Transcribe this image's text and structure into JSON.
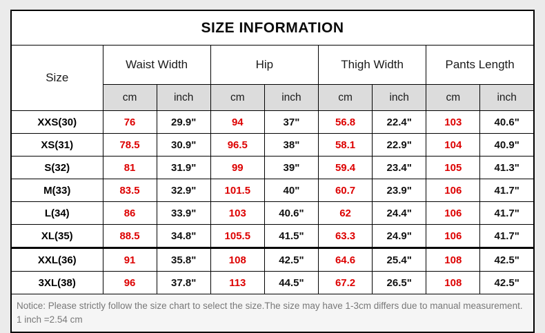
{
  "table": {
    "title": "SIZE INFORMATION",
    "size_column_header": "Size",
    "groups": [
      {
        "label": "Waist Width"
      },
      {
        "label": "Hip"
      },
      {
        "label": "Thigh Width"
      },
      {
        "label": "Pants Length"
      }
    ],
    "unit_headers": [
      "cm",
      "inch"
    ],
    "rows": [
      {
        "size": "XXS(30)",
        "values": [
          "76",
          "29.9\"",
          "94",
          "37\"",
          "56.8",
          "22.4\"",
          "103",
          "40.6\""
        ]
      },
      {
        "size": "XS(31)",
        "values": [
          "78.5",
          "30.9\"",
          "96.5",
          "38\"",
          "58.1",
          "22.9\"",
          "104",
          "40.9\""
        ]
      },
      {
        "size": "S(32)",
        "values": [
          "81",
          "31.9\"",
          "99",
          "39\"",
          "59.4",
          "23.4\"",
          "105",
          "41.3\""
        ]
      },
      {
        "size": "M(33)",
        "values": [
          "83.5",
          "32.9\"",
          "101.5",
          "40\"",
          "60.7",
          "23.9\"",
          "106",
          "41.7\""
        ]
      },
      {
        "size": "L(34)",
        "values": [
          "86",
          "33.9\"",
          "103",
          "40.6\"",
          "62",
          "24.4\"",
          "106",
          "41.7\""
        ]
      },
      {
        "size": "XL(35)",
        "values": [
          "88.5",
          "34.8\"",
          "105.5",
          "41.5\"",
          "63.3",
          "24.9\"",
          "106",
          "41.7\""
        ]
      },
      {
        "size": "XXL(36)",
        "values": [
          "91",
          "35.8\"",
          "108",
          "42.5\"",
          "64.6",
          "25.4\"",
          "108",
          "42.5\""
        ]
      },
      {
        "size": "3XL(38)",
        "values": [
          "96",
          "37.8\"",
          "113",
          "44.5\"",
          "67.2",
          "26.5\"",
          "108",
          "42.5\""
        ]
      }
    ],
    "notice_line1": "Notice: Please strictly follow the size chart to select the size.The size may have 1-3cm differs due to manual measurement.",
    "notice_line2": "1 inch =2.54 cm",
    "colors": {
      "cm_value_text": "#dd0000",
      "inch_value_text": "#111111",
      "subheader_background": "#dcdcdc",
      "notice_text": "#787878",
      "page_background": "#ebebeb",
      "border": "#000000"
    }
  }
}
